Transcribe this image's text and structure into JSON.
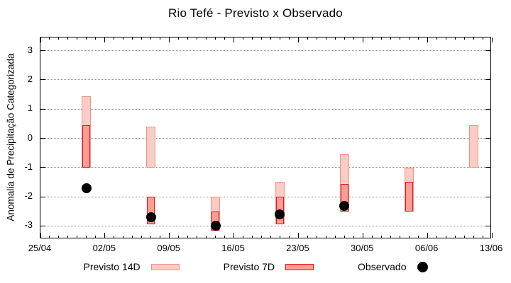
{
  "title": "Rio Tefé - Previsto x Observado",
  "legend": {
    "items": [
      {
        "label": "Previsto 14D",
        "swatch": "box-light"
      },
      {
        "label": "Previsto 7D",
        "swatch": "box-dark"
      },
      {
        "label": "Observado",
        "swatch": "dot"
      }
    ]
  },
  "colors": {
    "p14_fill": "#f9cdc5",
    "p14_border": "#ef9383",
    "p7_fill": "#fc9e96",
    "p7_border": "#e2131c",
    "obs": "#000000",
    "grid": "#8f8f8f",
    "axis": "#000000"
  },
  "chart_data": {
    "type": "bar",
    "subtype": "range-bars-with-points",
    "title": "Rio Tefé - Previsto x Observado",
    "ylabel": "Anomalia de Precipitação Categorizada",
    "xlabel": "",
    "ylim": [
      -3.45,
      3.45
    ],
    "y_ticks": [
      3,
      2,
      1,
      0,
      -1,
      -2,
      -3
    ],
    "x_tick_labels": [
      "25/04",
      "02/05",
      "09/05",
      "16/05",
      "23/05",
      "30/05",
      "06/06",
      "13/06"
    ],
    "x_total_days": 49,
    "x_major_interval_days": 7,
    "x_minor_interval_days": 1,
    "grid": "horizontal-dotted",
    "legend_position": "bottom",
    "series": [
      {
        "name": "Previsto 14D",
        "type": "range-bar"
      },
      {
        "name": "Previsto 7D",
        "type": "range-bar"
      },
      {
        "name": "Observado",
        "type": "point"
      }
    ],
    "groups": [
      {
        "date": "30/04",
        "day": 5,
        "previsto_14d": [
          -1.0,
          1.45
        ],
        "previsto_7d": [
          -1.0,
          0.45
        ],
        "observado": -1.7
      },
      {
        "date": "07/05",
        "day": 12,
        "previsto_14d": [
          -1.0,
          0.4
        ],
        "previsto_7d": [
          -2.95,
          -2.0
        ],
        "observado": -2.7
      },
      {
        "date": "14/05",
        "day": 19,
        "previsto_14d": [
          -3.15,
          -2.0
        ],
        "previsto_7d": [
          -3.15,
          -2.5
        ],
        "observado": -3.0
      },
      {
        "date": "21/05",
        "day": 26,
        "previsto_14d": [
          -2.95,
          -1.5
        ],
        "previsto_7d": [
          -2.95,
          -2.0
        ],
        "observado": -2.6
      },
      {
        "date": "28/05",
        "day": 33,
        "previsto_14d": [
          -2.5,
          -0.55
        ],
        "previsto_7d": [
          -2.5,
          -1.55
        ],
        "observado": -2.3
      },
      {
        "date": "04/06",
        "day": 40,
        "previsto_14d": [
          -2.5,
          -1.0
        ],
        "previsto_7d": [
          -2.5,
          -1.5
        ],
        "observado": null
      },
      {
        "date": "11/06",
        "day": 47,
        "previsto_14d": [
          -1.0,
          0.45
        ],
        "previsto_7d": null,
        "observado": null
      }
    ]
  }
}
